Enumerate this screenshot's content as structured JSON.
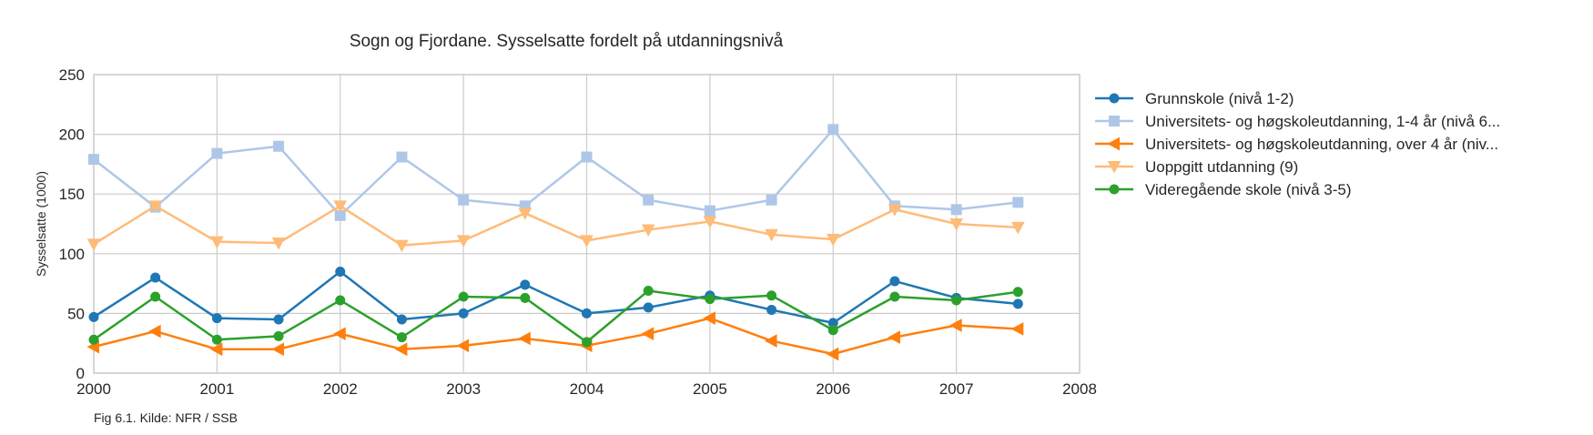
{
  "chart_data": {
    "type": "line",
    "title": "Sogn og Fjordane. Sysselsatte fordelt på utdanningsnivå",
    "xlabel": "",
    "ylabel": "Sysselsatte (1000)",
    "xlim": [
      2000,
      2008
    ],
    "ylim": [
      0,
      250
    ],
    "x_ticks": [
      "2000",
      "2001",
      "2002",
      "2003",
      "2004",
      "2005",
      "2006",
      "2007",
      "2008"
    ],
    "y_ticks": [
      "0",
      "50",
      "100",
      "150",
      "200",
      "250"
    ],
    "grid": true,
    "legend_position": "right",
    "x": [
      2000,
      2000.5,
      2001,
      2001.5,
      2002,
      2002.5,
      2003,
      2003.5,
      2004,
      2004.5,
      2005,
      2005.5,
      2006,
      2006.5,
      2007,
      2007.5
    ],
    "series": [
      {
        "name": "Grunnskole (nivå 1-2)",
        "color": "#1f77b4",
        "marker": "circle",
        "values": [
          47,
          80,
          46,
          45,
          85,
          45,
          50,
          74,
          50,
          55,
          65,
          53,
          42,
          77,
          63,
          58
        ]
      },
      {
        "name": "Universitets- og høgskoleutdanning, 1-4 år (nivå 6...",
        "color": "#aec7e8",
        "marker": "square",
        "values": [
          179,
          139,
          184,
          190,
          132,
          181,
          145,
          140,
          181,
          145,
          136,
          145,
          204,
          140,
          137,
          143
        ]
      },
      {
        "name": "Universitets- og høgskoleutdanning, over 4 år (niv...",
        "color": "#ff7f0e",
        "marker": "triangle-left",
        "values": [
          22,
          35,
          20,
          20,
          33,
          20,
          23,
          29,
          23,
          33,
          46,
          27,
          16,
          30,
          40,
          37
        ]
      },
      {
        "name": "Uoppgitt utdanning (9)",
        "color": "#ffbb78",
        "marker": "triangle-down",
        "values": [
          108,
          140,
          110,
          109,
          140,
          107,
          111,
          134,
          111,
          120,
          127,
          116,
          112,
          137,
          125,
          122
        ]
      },
      {
        "name": "Videregående skole (nivå 3-5)",
        "color": "#2ca02c",
        "marker": "circle",
        "values": [
          28,
          64,
          28,
          31,
          61,
          30,
          64,
          63,
          26,
          69,
          62,
          65,
          36,
          64,
          61,
          68
        ]
      }
    ],
    "source_note": "Fig 6.1. Kilde: NFR / SSB"
  }
}
